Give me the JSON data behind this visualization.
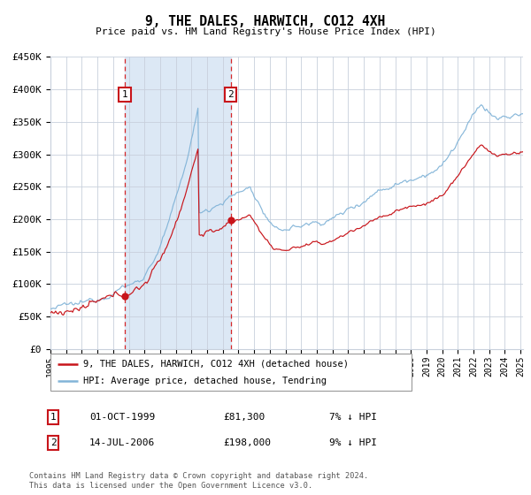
{
  "title": "9, THE DALES, HARWICH, CO12 4XH",
  "subtitle": "Price paid vs. HM Land Registry's House Price Index (HPI)",
  "ylim": [
    0,
    450000
  ],
  "yticks": [
    0,
    50000,
    100000,
    150000,
    200000,
    250000,
    300000,
    350000,
    400000,
    450000
  ],
  "ytick_labels": [
    "£0",
    "£50K",
    "£100K",
    "£150K",
    "£200K",
    "£250K",
    "£300K",
    "£350K",
    "£400K",
    "£450K"
  ],
  "hpi_color": "#82b4d8",
  "price_color": "#c8151b",
  "dashed_color": "#d62728",
  "shade_color": "#dce8f5",
  "grid_color": "#c8d0dc",
  "legend_price": "9, THE DALES, HARWICH, CO12 4XH (detached house)",
  "legend_hpi": "HPI: Average price, detached house, Tendring",
  "footnote1": "Contains HM Land Registry data © Crown copyright and database right 2024.",
  "footnote2": "This data is licensed under the Open Government Licence v3.0.",
  "table_row1": [
    "1",
    "01-OCT-1999",
    "£81,300",
    "7% ↓ HPI"
  ],
  "table_row2": [
    "2",
    "14-JUL-2006",
    "£198,000",
    "9% ↓ HPI"
  ],
  "purchase1_month": 57,
  "purchase1_value": 81300,
  "purchase2_month": 138,
  "purchase2_value": 198000
}
